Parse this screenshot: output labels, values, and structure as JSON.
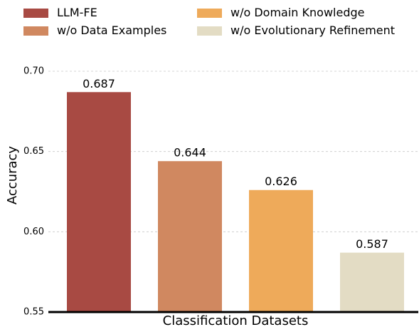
{
  "chart_data": {
    "type": "bar",
    "xlabel": "Classification Datasets",
    "ylabel": "Accuracy",
    "categories": [
      null
    ],
    "series": [
      {
        "name": "LLM-FE",
        "color": "#a84a43",
        "values": [
          0.687
        ]
      },
      {
        "name": "w/o Data Examples",
        "color": "#d08860",
        "values": [
          0.644
        ]
      },
      {
        "name": "w/o Domain Knowledge",
        "color": "#eeaa5a",
        "values": [
          0.626
        ]
      },
      {
        "name": "w/o Evolutionary Refinement",
        "color": "#e3dcc4",
        "values": [
          0.587
        ]
      }
    ],
    "ylim": [
      0.55,
      0.7
    ],
    "yticks": [
      {
        "value": 0.55,
        "label": "0.55"
      },
      {
        "value": 0.6,
        "label": "0.60"
      },
      {
        "value": 0.65,
        "label": "0.65"
      },
      {
        "value": 0.7,
        "label": "0.70"
      }
    ],
    "grid": true
  }
}
